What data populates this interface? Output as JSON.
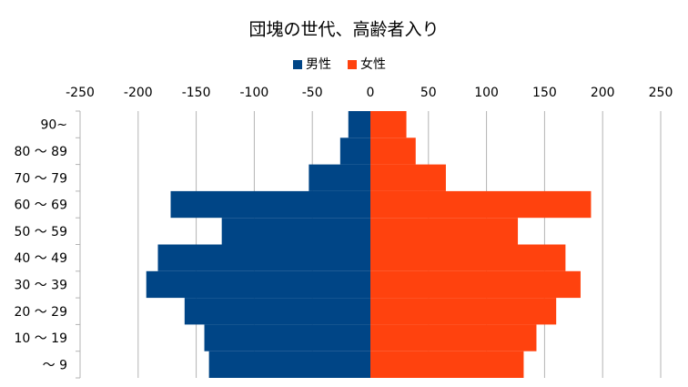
{
  "chart_data": {
    "type": "bar",
    "orientation": "horizontal",
    "stacked": true,
    "title": "団塊の世代、高齢者入り",
    "categories": [
      "90~",
      "80 ～ 89",
      "70 ～ 79",
      "60 ～ 69",
      "50 ～ 59",
      "40 ～ 49",
      "30 ～ 39",
      "20 ～ 29",
      "10 ～ 19",
      "～ 9"
    ],
    "series": [
      {
        "name": "男性",
        "color": "#004586",
        "values": [
          -19,
          -26,
          -53,
          -172,
          -128,
          -183,
          -193,
          -160,
          -143,
          -139
        ]
      },
      {
        "name": "女性",
        "color": "#ff420e",
        "values": [
          31,
          39,
          65,
          190,
          127,
          168,
          181,
          160,
          143,
          132
        ]
      }
    ],
    "xlim": [
      -250,
      250
    ],
    "xticks": [
      -250,
      -200,
      -150,
      -100,
      -50,
      0,
      50,
      100,
      150,
      200,
      250
    ],
    "grid": true,
    "legend": "top"
  }
}
